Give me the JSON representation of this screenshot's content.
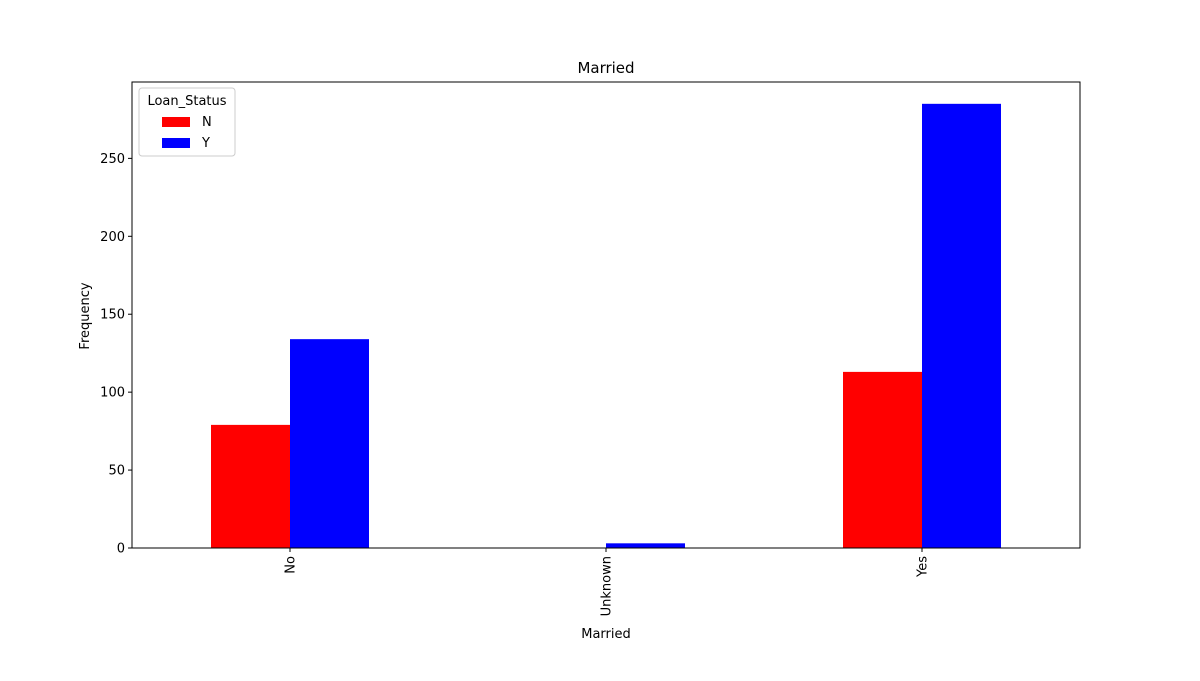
{
  "chart_data": {
    "type": "bar",
    "title": "Married",
    "xlabel": "Married",
    "ylabel": "Frequency",
    "categories": [
      "No",
      "Unknown",
      "Yes"
    ],
    "series": [
      {
        "name": "N",
        "color": "#ff0000",
        "values": [
          79,
          0,
          113
        ]
      },
      {
        "name": "Y",
        "color": "#0000ff",
        "values": [
          134,
          3,
          285
        ]
      }
    ],
    "ylim": [
      0,
      299
    ],
    "yticks": [
      0,
      50,
      100,
      150,
      200,
      250
    ],
    "ytick_labels": [
      "0",
      "50",
      "100",
      "150",
      "200",
      "250"
    ],
    "legend": {
      "title": "Loan_Status",
      "position": "top-left"
    },
    "grid": false
  }
}
